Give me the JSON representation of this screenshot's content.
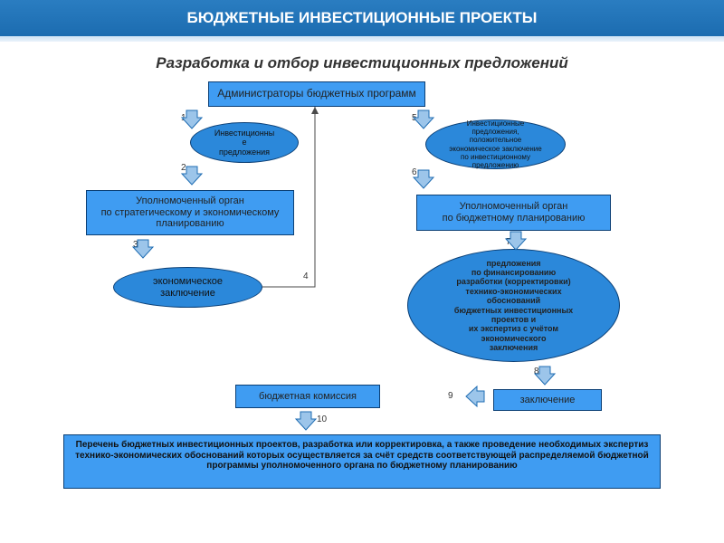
{
  "colors": {
    "header_bg_top": "#2a7dc1",
    "header_bg_bot": "#1c6cb0",
    "node_rect": "#3f9cf2",
    "node_ellipse": "#2b88da",
    "border": "#0b3f75",
    "text": "#222222",
    "arrow_fill": "#9cc5ea",
    "arrow_stroke": "#1f6db3",
    "line_color": "#4a4a4a"
  },
  "typography": {
    "header_fontsize": 17,
    "subtitle_fontsize": 17,
    "node_fontsize": 11,
    "label_fontsize": 9,
    "num_fontsize": 10
  },
  "header": {
    "title": "БЮДЖЕТНЫЕ ИНВЕСТИЦИОННЫЕ ПРОЕКТЫ"
  },
  "subtitle": "Разработка и отбор инвестиционных предложений",
  "nodes": {
    "admin": "Администраторы бюджетных программ",
    "organ_left": "Уполномоченный орган\nпо стратегическому и экономическому\nпланированию",
    "organ_right": "Уполномоченный орган\nпо бюджетному планированию",
    "ellipse_invest": "Инвестиционны\nе\nпредложения",
    "ellipse_econ": "экономическое\nзаключение",
    "ellipse_big": "предложения\nпо финансированию\nразработки (корректировки)\nтехнико-экономических\nобоснований\nбюджетных инвестиционных\nпроектов и\nих экспертиз с учётом\nэкономического\nзаключения",
    "box_commission": "бюджетная комиссия",
    "box_conclusion": "заключение"
  },
  "labels": {
    "right_small": "Инвестиционные\nпредложения,\nположительное\nэкономическое заключение\nпо инвестиционному\nпредложению"
  },
  "bottom": "Перечень бюджетных инвестиционных проектов, разработка или корректировка, а также проведение необходимых экспертиз технико-экономических обоснований которых осуществляется за счёт средств соответствующей распределяемой бюджетной программы уполномоченного органа по бюджетному планированию",
  "numbers": {
    "n1": "1",
    "n2": "2",
    "n3": "3",
    "n4": "4",
    "n5": "5",
    "n6": "6",
    "n7": "7",
    "n8": "8",
    "n9": "9",
    "n10": "10"
  }
}
